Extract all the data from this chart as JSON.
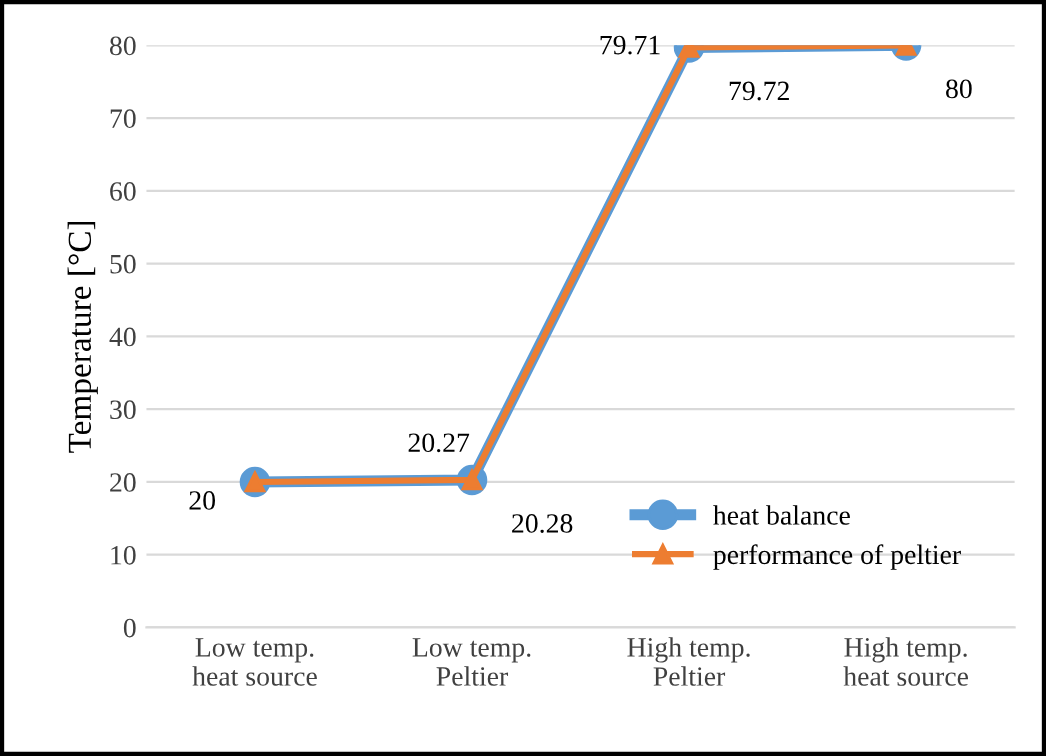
{
  "chart_data": {
    "type": "line",
    "ylabel": "Temperature [°C]",
    "categories": [
      "Low temp.\nheat source",
      "Low temp.\nPeltier",
      "High temp.\nPeltier",
      "High temp.\nheat source"
    ],
    "series": [
      {
        "name": "heat balance",
        "color": "#5b9bd5",
        "marker": "circle",
        "values": [
          20,
          20.27,
          79.71,
          80
        ],
        "value_labels": [
          "20",
          "20.27",
          "79.71",
          null
        ]
      },
      {
        "name": "performance of peltier",
        "color": "#ed7d31",
        "marker": "triangle",
        "values": [
          20,
          20.28,
          79.72,
          80
        ],
        "value_labels": [
          null,
          "20.28",
          "79.72",
          "80"
        ]
      }
    ],
    "ylim": [
      0,
      80
    ],
    "yticks": [
      0,
      10,
      20,
      30,
      40,
      50,
      60,
      70,
      80
    ],
    "grid": "y",
    "legend": "bottom right",
    "line_style": "solid"
  }
}
